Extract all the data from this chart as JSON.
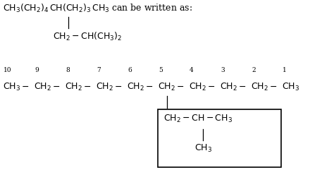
{
  "bg_color": "#ffffff",
  "fig_width": 4.57,
  "fig_height": 2.41,
  "dpi": 100,
  "fontsize": 9,
  "fontsize_small": 6.5,
  "font_family": "DejaVu Serif"
}
